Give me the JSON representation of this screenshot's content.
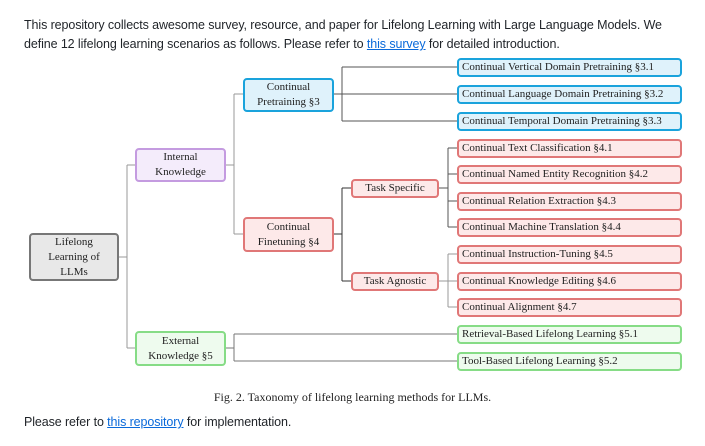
{
  "intro": {
    "line1": "This repository collects awesome survey, resource, and paper for Lifelong Learning with Large Language Models. We",
    "line2_before": "define 12 lifelong learning scenarios as follows. Please refer to ",
    "line2_link": "this survey",
    "line2_after": " for detailed introduction."
  },
  "diagram": {
    "root": "Lifelong Learning of LLMs",
    "internal": "Internal Knowledge",
    "external": "External Knowledge §5",
    "pretraining": "Continual Pretraining §3",
    "finetuning": "Continual Finetuning §4",
    "task_specific": "Task Specific",
    "task_agnostic": "Task Agnostic",
    "leaves": [
      "Continual Vertical Domain Pretraining §3.1",
      "Continual Language Domain Pretraining §3.2",
      "Continual Temporal Domain Pretraining §3.3",
      "Continual Text Classification §4.1",
      "Continual Named Entity Recognition §4.2",
      "Continual Relation Extraction §4.3",
      "Continual Machine Translation §4.4",
      "Continual Instruction-Tuning §4.5",
      "Continual Knowledge Editing §4.6",
      "Continual Alignment §4.7",
      "Retrieval-Based Lifelong Learning §5.1",
      "Tool-Based Lifelong Learning §5.2"
    ],
    "colors": {
      "pretraining": "#1aa3dc",
      "finetuning": "#e07777",
      "external": "#86dc86",
      "internal": "#c49be0",
      "root": "#777777"
    }
  },
  "caption": "Fig. 2.  Taxonomy of lifelong learning methods for LLMs.",
  "footer": {
    "before": "Please refer to ",
    "link": "this repository",
    "after": " for implementation."
  }
}
